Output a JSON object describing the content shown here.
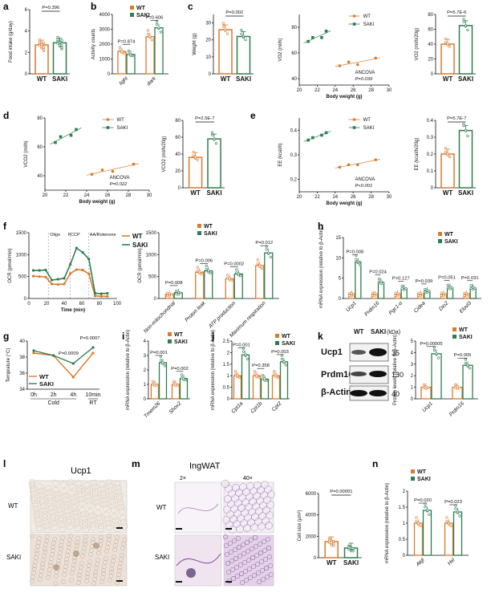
{
  "colors": {
    "wt": "#d97b2f",
    "saki": "#2e7d4f",
    "text": "#111111"
  },
  "chart_data": [
    {
      "panel": "a",
      "type": "bar",
      "ylabel": "Food intake (g/day)",
      "ylim": [
        0,
        6
      ],
      "yticks": [
        0,
        2,
        4,
        6
      ],
      "categories": [
        "WT",
        "SAKI"
      ],
      "values": [
        2.7,
        2.9
      ],
      "pvalue": "P=0.396"
    },
    {
      "panel": "b",
      "type": "bar",
      "ylabel": "Activity counts",
      "ylim": [
        0,
        4000
      ],
      "yticks": [
        0,
        1000,
        2000,
        3000,
        4000
      ],
      "categories": [
        "light",
        "dark"
      ],
      "legend": [
        "WT",
        "SAKI"
      ],
      "series": [
        {
          "name": "WT",
          "values": [
            1500,
            2500
          ]
        },
        {
          "name": "SAKI",
          "values": [
            1300,
            3100
          ]
        }
      ],
      "pvalues": [
        "P=0.874",
        "P=0.606"
      ]
    },
    {
      "panel": "c1",
      "type": "bar",
      "ylabel": "Weight (g)",
      "ylim": [
        0,
        35
      ],
      "yticks": [
        0,
        10,
        20,
        30
      ],
      "categories": [
        "WT",
        "SAKI"
      ],
      "values": [
        26,
        22
      ],
      "pvalue": "P=0.002"
    },
    {
      "panel": "c2",
      "type": "scatter",
      "xlabel": "Body weight (g)",
      "ylabel": "VO2 (ml/h)",
      "xlim": [
        20,
        30
      ],
      "xticks": [
        20,
        22,
        24,
        26,
        28,
        30
      ],
      "ylim": [
        35,
        90
      ],
      "yticks": [
        40,
        60,
        80
      ],
      "legend": [
        "WT",
        "SAKI"
      ],
      "annotation": "ANCOVA",
      "pvalue": "P=0.039",
      "series": [
        {
          "name": "WT",
          "x": [
            24.5,
            25.5,
            26.5,
            28.5
          ],
          "y": [
            50,
            53,
            51,
            56
          ]
        },
        {
          "name": "SAKI",
          "x": [
            21,
            21.5,
            22.5,
            23
          ],
          "y": [
            69,
            72,
            72,
            77
          ]
        }
      ]
    },
    {
      "panel": "c3",
      "type": "bar",
      "ylabel": "VO2 (ml/h/20g)",
      "ylim": [
        0,
        80
      ],
      "yticks": [
        0,
        20,
        40,
        60,
        80
      ],
      "categories": [
        "WT",
        "SAKI"
      ],
      "values": [
        40,
        65
      ],
      "pvalue": "P=5.7E-6"
    },
    {
      "panel": "d1",
      "type": "scatter",
      "xlabel": "Body weight (g)",
      "ylabel": "VCO2 (ml/h)",
      "xlim": [
        20,
        30
      ],
      "xticks": [
        20,
        22,
        24,
        26,
        28,
        30
      ],
      "ylim": [
        30,
        80
      ],
      "yticks": [
        40,
        60,
        80
      ],
      "legend": [
        "WT",
        "SAKI"
      ],
      "annotation": "ANCOVA",
      "pvalue": "P=0.022",
      "series": [
        {
          "name": "WT",
          "x": [
            24.5,
            25.5,
            26.5,
            28.5
          ],
          "y": [
            41,
            44,
            43,
            48
          ]
        },
        {
          "name": "SAKI",
          "x": [
            21,
            21.5,
            22.5,
            23
          ],
          "y": [
            63,
            67,
            68,
            72
          ]
        }
      ]
    },
    {
      "panel": "d2",
      "type": "bar",
      "ylabel": "VCO2 (ml/h/20g)",
      "ylim": [
        0,
        80
      ],
      "yticks": [
        0,
        20,
        40,
        60,
        80
      ],
      "categories": [
        "WT",
        "SAKI"
      ],
      "values": [
        36,
        58
      ],
      "pvalue": "P=2.5E-7"
    },
    {
      "panel": "e1",
      "type": "scatter",
      "xlabel": "Body weight (g)",
      "ylabel": "EE (kcal/h)",
      "xlim": [
        20,
        30
      ],
      "xticks": [
        20,
        22,
        24,
        26,
        28,
        30
      ],
      "ylim": [
        0.15,
        0.45
      ],
      "yticks": [
        0.2,
        0.3,
        0.4
      ],
      "legend": [
        "WT",
        "SAKI"
      ],
      "annotation": "ANCOVA",
      "pvalue": "P<0.001",
      "series": [
        {
          "name": "WT",
          "x": [
            24.5,
            25.5,
            26.5,
            28.5
          ],
          "y": [
            0.25,
            0.26,
            0.26,
            0.28
          ]
        },
        {
          "name": "SAKI",
          "x": [
            21,
            21.5,
            22.5,
            23
          ],
          "y": [
            0.36,
            0.37,
            0.38,
            0.39
          ]
        }
      ]
    },
    {
      "panel": "e2",
      "type": "bar",
      "ylabel": "EE (kcal/h/20g)",
      "ylim": [
        0,
        0.4
      ],
      "yticks": [
        0,
        0.1,
        0.2,
        0.3,
        0.4
      ],
      "categories": [
        "WT",
        "SAKI"
      ],
      "values": [
        0.2,
        0.34
      ],
      "pvalue": "P=5.7E-7"
    },
    {
      "panel": "f1",
      "type": "line",
      "xlabel": "Time (min)",
      "ylabel": "OCR (pmol/min)",
      "xlim": [
        0,
        100
      ],
      "xticks": [
        0,
        20,
        40,
        60,
        80,
        100
      ],
      "ylim": [
        0,
        1500
      ],
      "yticks": [
        0,
        500,
        1000,
        1500
      ],
      "legend": [
        "WT",
        "SAKI"
      ],
      "annotations": [
        "Oligo",
        "FCCP",
        "AA/Rotenone"
      ],
      "x": [
        5,
        12,
        19,
        26,
        33,
        40,
        47,
        54,
        61,
        68,
        75,
        82,
        89
      ],
      "series": [
        {
          "name": "WT",
          "values": [
            510,
            500,
            490,
            330,
            320,
            330,
            570,
            660,
            650,
            560,
            60,
            50,
            50
          ]
        },
        {
          "name": "SAKI",
          "values": [
            640,
            640,
            650,
            420,
            440,
            460,
            780,
            1150,
            1050,
            900,
            120,
            110,
            120
          ]
        }
      ]
    },
    {
      "panel": "f2",
      "type": "bar",
      "ylabel": "OCR (pmol/min)",
      "ylim": [
        0,
        1500
      ],
      "yticks": [
        0,
        500,
        1000,
        1500
      ],
      "categories": [
        "Non-mitochondrial",
        "Proton leak",
        "ATP production",
        "Maximum respiration"
      ],
      "legend": [
        "WT",
        "SAKI"
      ],
      "series": [
        {
          "name": "WT",
          "values": [
            90,
            600,
            450,
            750
          ]
        },
        {
          "name": "SAKI",
          "values": [
            130,
            630,
            560,
            1040
          ]
        }
      ],
      "pvalues": [
        "P=0.008",
        "P=0.006",
        "P=0.0002",
        "P=0.012"
      ]
    },
    {
      "panel": "h",
      "type": "bar",
      "ylabel": "mRNA expression (relative to β-Actin)",
      "ylim": [
        0,
        15
      ],
      "yticks": [
        0,
        5,
        10,
        15
      ],
      "categories": [
        "Ucp1",
        "Prdm16",
        "Pgc1-α",
        "Cidea",
        "Dio2",
        "Elovl3"
      ],
      "legend": [
        "WT",
        "SAKI"
      ],
      "series": [
        {
          "name": "WT",
          "values": [
            1,
            1,
            1,
            1,
            1,
            1
          ]
        },
        {
          "name": "SAKI",
          "values": [
            9,
            4,
            2.5,
            1.8,
            2.7,
            2.6
          ]
        }
      ],
      "pvalues": [
        "P=0.008",
        "P=0.024",
        "P=0.127",
        "P=0.039",
        "P=0.051",
        "P=0.031"
      ]
    },
    {
      "panel": "g",
      "type": "line",
      "ylabel": "Temprature (°C)",
      "ylim": [
        34,
        40
      ],
      "yticks": [
        34,
        36,
        38,
        40
      ],
      "categories": [
        "0h",
        "2h",
        "4h",
        "10min"
      ],
      "groups": [
        "Cold",
        "RT"
      ],
      "legend": [
        "WT",
        "SAKI"
      ],
      "series": [
        {
          "name": "WT",
          "values": [
            38.5,
            38.2,
            35.5,
            38.5
          ]
        },
        {
          "name": "SAKI",
          "values": [
            38.8,
            38.2,
            37.2,
            39.2
          ]
        }
      ],
      "pvalues": [
        "P=0.0009",
        "P=0.0007"
      ]
    },
    {
      "panel": "i",
      "type": "bar",
      "ylabel": "mRNA expression (relative to β-Actin)",
      "ylim": [
        0,
        4
      ],
      "yticks": [
        0,
        1,
        2,
        3,
        4
      ],
      "categories": [
        "Tmem26",
        "Shox2"
      ],
      "legend": [
        "WT",
        "SAKI"
      ],
      "series": [
        {
          "name": "WT",
          "values": [
            1,
            1
          ]
        },
        {
          "name": "SAKI",
          "values": [
            2.5,
            1.4
          ]
        }
      ],
      "pvalues": [
        "P=0.001",
        "P=0.002"
      ]
    },
    {
      "panel": "j",
      "type": "bar",
      "ylabel": "mRNA expression (relative to β-Actin)",
      "ylim": [
        0,
        2.5
      ],
      "yticks": [
        0,
        0.5,
        1,
        1.5,
        2,
        2.5
      ],
      "categories": [
        "Cpt1a",
        "Cpt1b",
        "Cpt2"
      ],
      "legend": [
        "WT",
        "SAKI"
      ],
      "series": [
        {
          "name": "WT",
          "values": [
            1,
            1,
            1
          ]
        },
        {
          "name": "SAKI",
          "values": [
            1.9,
            0.85,
            1.6
          ]
        }
      ],
      "pvalues": [
        "P=0.001",
        "P=0.358",
        "P=0.003"
      ]
    },
    {
      "panel": "k2",
      "type": "bar",
      "ylabel": "Protein levels (relative to β-Actin)",
      "ylim": [
        0,
        5
      ],
      "yticks": [
        0,
        1,
        2,
        3,
        4,
        5
      ],
      "categories": [
        "Ucp1",
        "Prdm16"
      ],
      "legend": [
        "WT",
        "SAKI"
      ],
      "series": [
        {
          "name": "WT",
          "values": [
            1,
            1
          ]
        },
        {
          "name": "SAKI",
          "values": [
            3.9,
            2.9
          ]
        }
      ],
      "pvalues": [
        "P=0.00005",
        "P=0.005"
      ]
    },
    {
      "panel": "m2",
      "type": "bar",
      "ylabel": "Cell size (μm²)",
      "ylim": [
        0,
        6000
      ],
      "yticks": [
        0,
        2000,
        4000,
        6000
      ],
      "categories": [
        "WT",
        "SAKI"
      ],
      "values": [
        1500,
        900
      ],
      "pvalue": "P=0.00001"
    },
    {
      "panel": "n",
      "type": "bar",
      "ylabel": "mRNA expression (relative to β-Actin)",
      "ylim": [
        0,
        2
      ],
      "yticks": [
        0,
        0.5,
        1,
        1.5,
        2
      ],
      "categories": [
        "Atgl",
        "Hsl"
      ],
      "legend": [
        "WT",
        "SAKI"
      ],
      "series": [
        {
          "name": "WT",
          "values": [
            1,
            1
          ]
        },
        {
          "name": "SAKI",
          "values": [
            1.4,
            1.35
          ]
        }
      ],
      "pvalues": [
        "P=0.020",
        "P=0.023"
      ]
    }
  ],
  "blot": {
    "lanes": [
      "WT",
      "SAKI"
    ],
    "unit": "(kDa)",
    "bands": [
      "Ucp1",
      "Prdm16",
      "β-Actin"
    ],
    "markers": [
      "35",
      "130",
      "40"
    ]
  },
  "images": {
    "ucp1_title": "Ucp1",
    "ingwat_title": "IngWAT",
    "mag_low": "2×",
    "mag_high": "40×",
    "row_wt": "WT",
    "row_saki": "SAKI"
  },
  "panel_labels": [
    "a",
    "b",
    "c",
    "d",
    "e",
    "f",
    "g",
    "h",
    "i",
    "j",
    "k",
    "l",
    "m",
    "n"
  ]
}
